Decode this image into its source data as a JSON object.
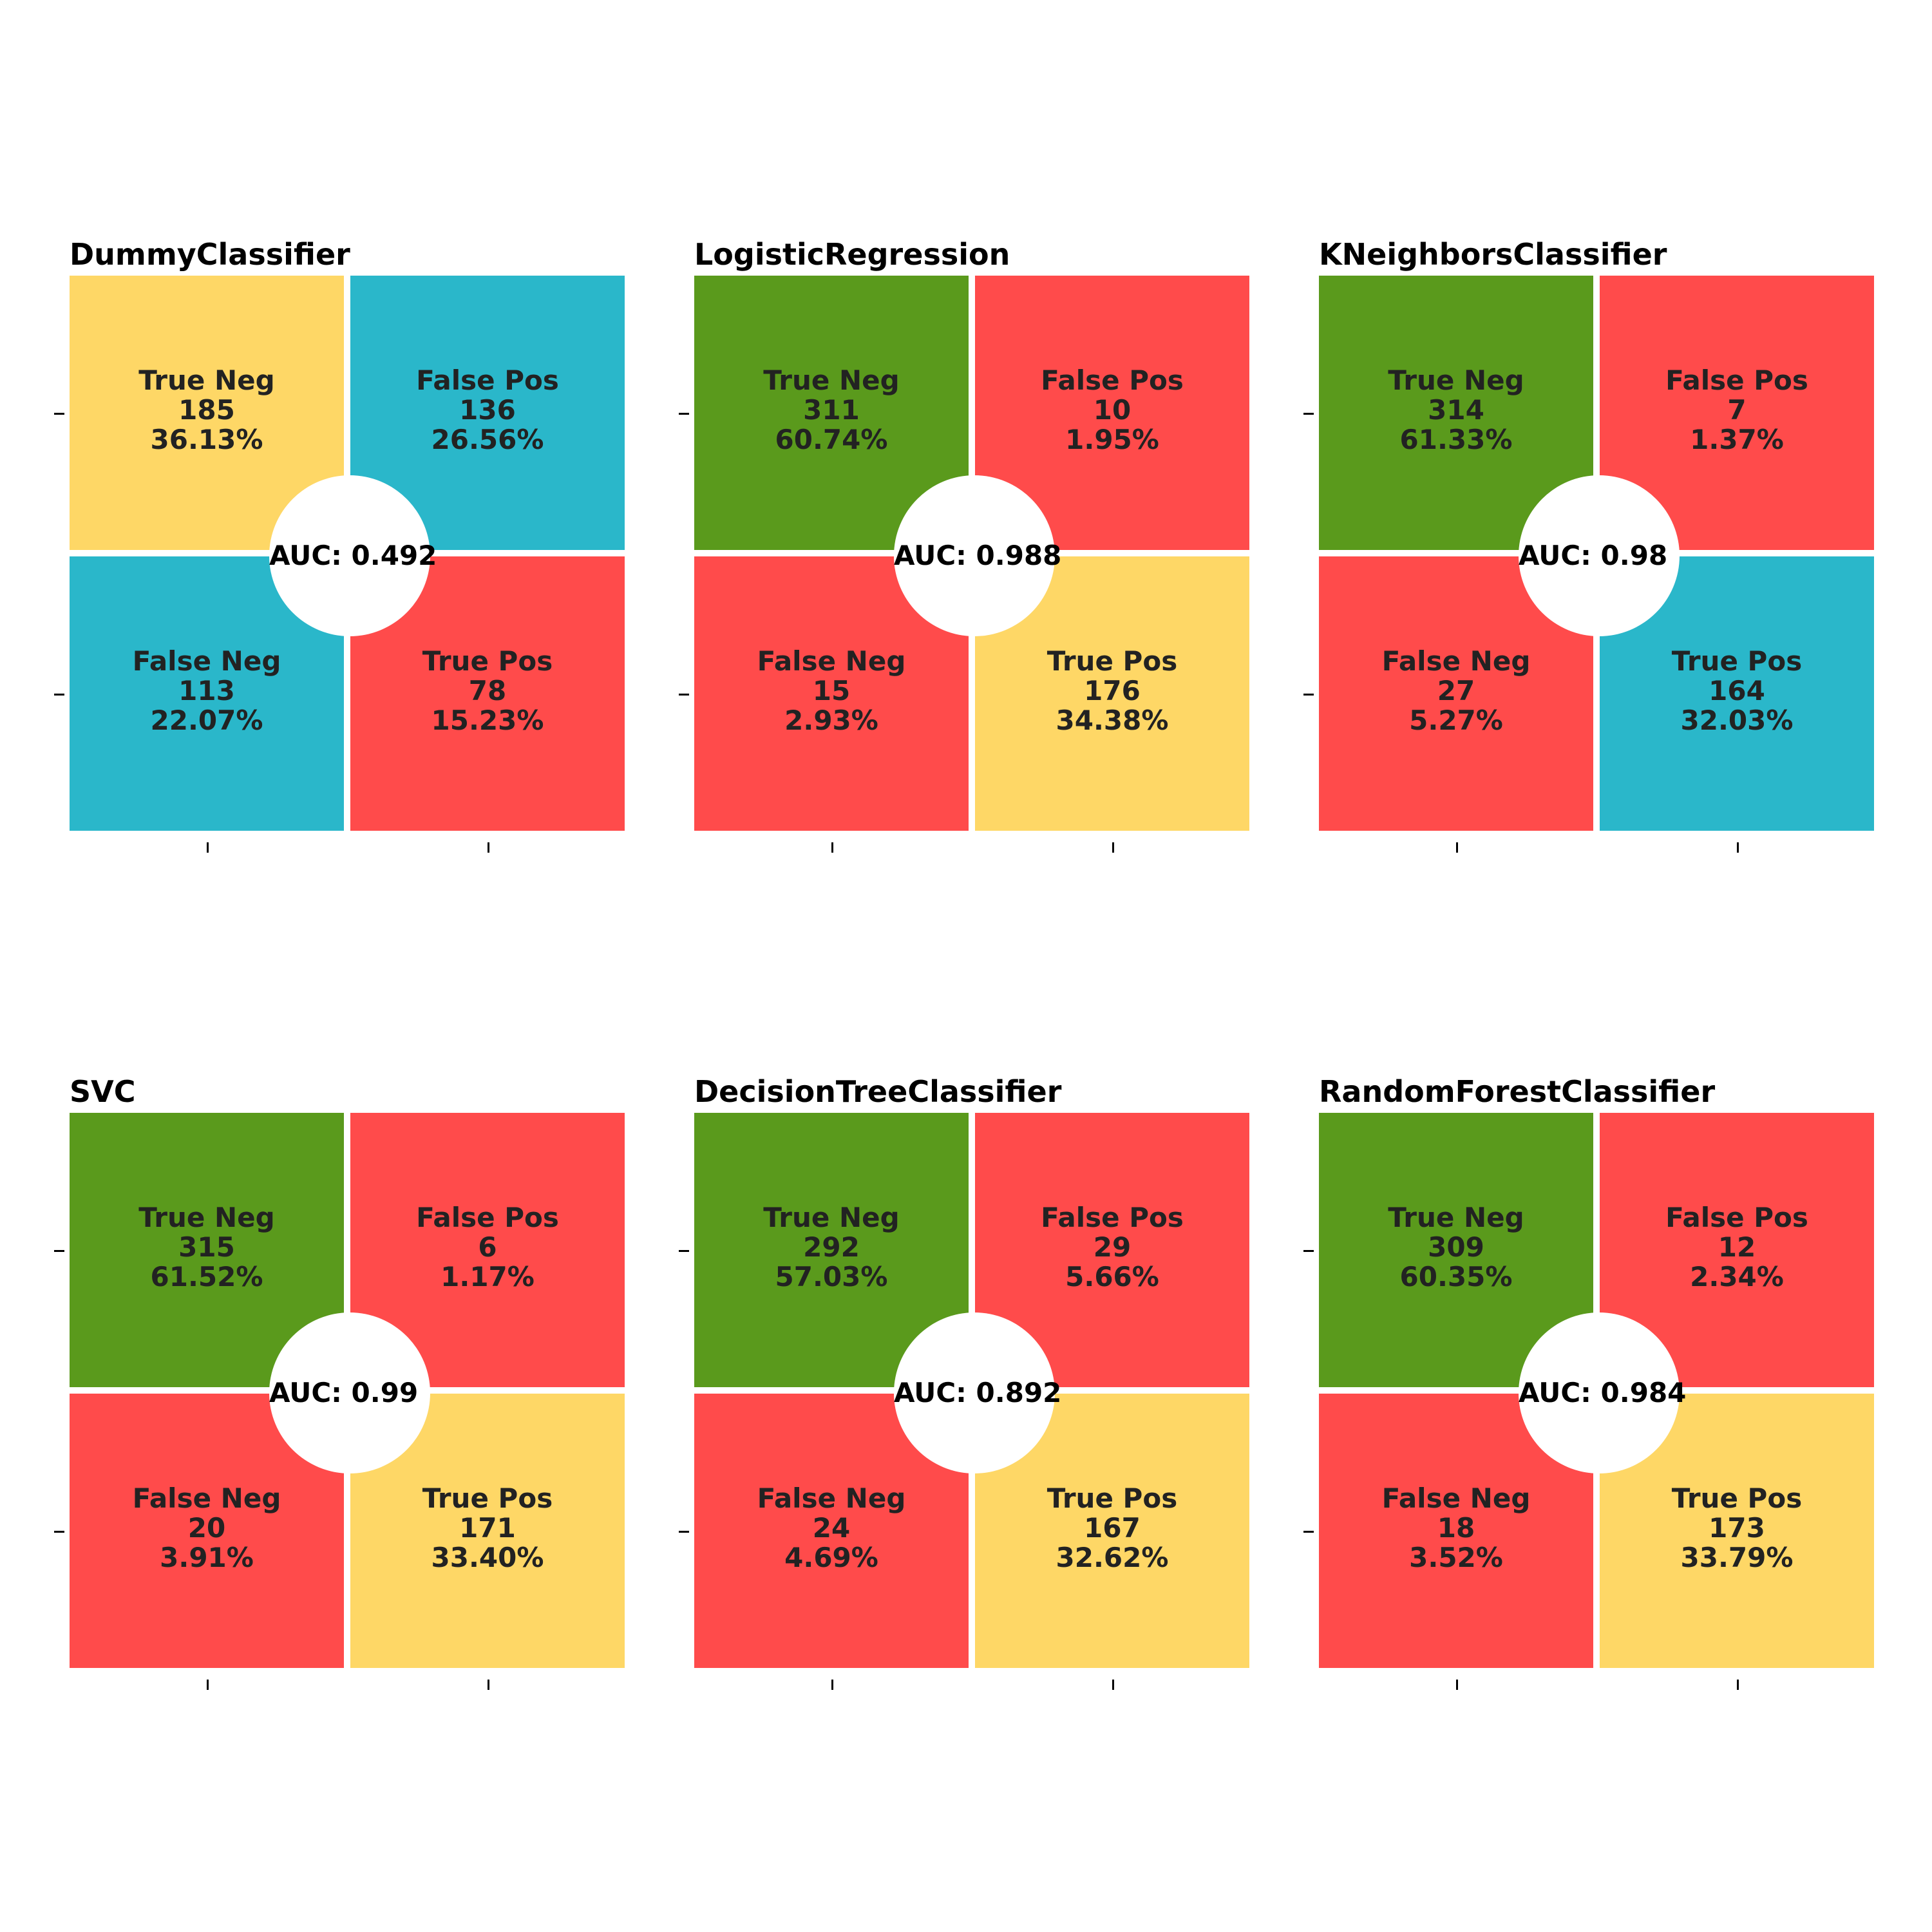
{
  "figure_title_partial": "",
  "cell_labels": [
    "True Neg",
    "False Pos",
    "False Neg",
    "True Pos"
  ],
  "colors": {
    "green": "#5a9a1c",
    "red": "#ff4b4b",
    "yellow": "#fed766",
    "teal": "#2ab7ca"
  },
  "chart_data": [
    {
      "type": "heatmap",
      "title": "DummyClassifier",
      "auc_label": "AUC: 0.492",
      "auc": 0.492,
      "cells": [
        {
          "label": "True Neg",
          "count": "185",
          "percent": "36.13%",
          "color": "#fed766"
        },
        {
          "label": "False Pos",
          "count": "136",
          "percent": "26.56%",
          "color": "#2ab7ca"
        },
        {
          "label": "False Neg",
          "count": "113",
          "percent": "22.07%",
          "color": "#2ab7ca"
        },
        {
          "label": "True Pos",
          "count": "78",
          "percent": "15.23%",
          "color": "#ff4b4b"
        }
      ]
    },
    {
      "type": "heatmap",
      "title": "LogisticRegression",
      "auc_label": "AUC: 0.988",
      "auc": 0.988,
      "cells": [
        {
          "label": "True Neg",
          "count": "311",
          "percent": "60.74%",
          "color": "#5a9a1c"
        },
        {
          "label": "False Pos",
          "count": "10",
          "percent": "1.95%",
          "color": "#ff4b4b"
        },
        {
          "label": "False Neg",
          "count": "15",
          "percent": "2.93%",
          "color": "#ff4b4b"
        },
        {
          "label": "True Pos",
          "count": "176",
          "percent": "34.38%",
          "color": "#fed766"
        }
      ]
    },
    {
      "type": "heatmap",
      "title": "KNeighborsClassifier",
      "auc_label": "AUC: 0.98",
      "auc": 0.98,
      "cells": [
        {
          "label": "True Neg",
          "count": "314",
          "percent": "61.33%",
          "color": "#5a9a1c"
        },
        {
          "label": "False Pos",
          "count": "7",
          "percent": "1.37%",
          "color": "#ff4b4b"
        },
        {
          "label": "False Neg",
          "count": "27",
          "percent": "5.27%",
          "color": "#ff4b4b"
        },
        {
          "label": "True Pos",
          "count": "164",
          "percent": "32.03%",
          "color": "#2ab7ca"
        }
      ]
    },
    {
      "type": "heatmap",
      "title": "SVC",
      "auc_label": "AUC: 0.99",
      "auc": 0.99,
      "cells": [
        {
          "label": "True Neg",
          "count": "315",
          "percent": "61.52%",
          "color": "#5a9a1c"
        },
        {
          "label": "False Pos",
          "count": "6",
          "percent": "1.17%",
          "color": "#ff4b4b"
        },
        {
          "label": "False Neg",
          "count": "20",
          "percent": "3.91%",
          "color": "#ff4b4b"
        },
        {
          "label": "True Pos",
          "count": "171",
          "percent": "33.40%",
          "color": "#fed766"
        }
      ]
    },
    {
      "type": "heatmap",
      "title": "DecisionTreeClassifier",
      "auc_label": "AUC: 0.892",
      "auc": 0.892,
      "cells": [
        {
          "label": "True Neg",
          "count": "292",
          "percent": "57.03%",
          "color": "#5a9a1c"
        },
        {
          "label": "False Pos",
          "count": "29",
          "percent": "5.66%",
          "color": "#ff4b4b"
        },
        {
          "label": "False Neg",
          "count": "24",
          "percent": "4.69%",
          "color": "#ff4b4b"
        },
        {
          "label": "True Pos",
          "count": "167",
          "percent": "32.62%",
          "color": "#fed766"
        }
      ]
    },
    {
      "type": "heatmap",
      "title": "RandomForestClassifier",
      "auc_label": "AUC: 0.984",
      "auc": 0.984,
      "cells": [
        {
          "label": "True Neg",
          "count": "309",
          "percent": "60.35%",
          "color": "#5a9a1c"
        },
        {
          "label": "False Pos",
          "count": "12",
          "percent": "2.34%",
          "color": "#ff4b4b"
        },
        {
          "label": "False Neg",
          "count": "18",
          "percent": "3.52%",
          "color": "#ff4b4b"
        },
        {
          "label": "True Pos",
          "count": "173",
          "percent": "33.79%",
          "color": "#fed766"
        }
      ]
    }
  ]
}
